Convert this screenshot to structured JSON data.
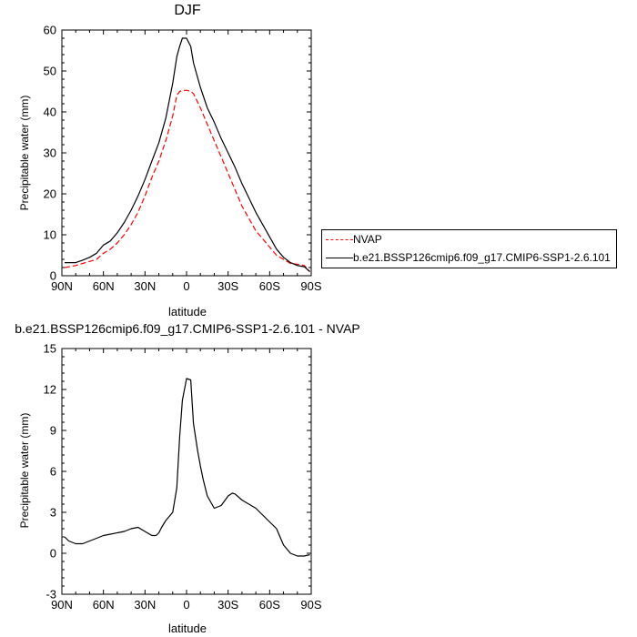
{
  "chart_data": [
    {
      "type": "line",
      "title": "DJF",
      "xlabel": "latitude",
      "ylabel": "Precipitable water (mm)",
      "x_ticks": [
        "90N",
        "60N",
        "30N",
        "0",
        "30S",
        "60S",
        "90S"
      ],
      "y_ticks": [
        "0",
        "10",
        "20",
        "30",
        "40",
        "50",
        "60"
      ],
      "xlim": [
        90,
        -90
      ],
      "ylim": [
        0,
        60
      ],
      "legend_position": "right",
      "series": [
        {
          "name": "NVAP",
          "color": "#ff0000",
          "style": "dashed",
          "x": [
            88,
            80,
            75,
            70,
            65,
            60,
            55,
            50,
            45,
            40,
            35,
            30,
            25,
            20,
            15,
            10,
            7,
            5,
            3,
            0,
            -3,
            -5,
            -10,
            -15,
            -20,
            -25,
            -30,
            -35,
            -40,
            -45,
            -50,
            -55,
            -60,
            -65,
            -70,
            -75,
            -80,
            -85,
            -89
          ],
          "y": [
            2,
            2.5,
            3,
            3.5,
            4,
            5.5,
            6.5,
            8,
            10,
            12.5,
            15.5,
            19.5,
            24,
            28,
            33,
            39,
            44,
            45,
            45.2,
            45.3,
            45,
            44.5,
            41,
            37,
            33,
            29,
            25,
            21,
            17,
            14,
            11,
            9,
            7,
            5,
            4,
            3,
            2.8,
            2.5,
            1
          ]
        },
        {
          "name": "b.e21.BSSP126cmip6.f09_g17.CMIP6-SSP1-2.6.101",
          "color": "#000000",
          "style": "solid",
          "x": [
            88,
            80,
            75,
            70,
            65,
            60,
            55,
            50,
            45,
            40,
            35,
            30,
            25,
            20,
            15,
            10,
            7,
            5,
            3,
            0,
            -3,
            -5,
            -10,
            -15,
            -20,
            -25,
            -30,
            -35,
            -40,
            -45,
            -50,
            -55,
            -60,
            -65,
            -70,
            -75,
            -80,
            -85,
            -89
          ],
          "y": [
            3.2,
            3.2,
            3.8,
            4.5,
            5.5,
            7.5,
            8.5,
            10.5,
            13,
            16,
            19.5,
            23.5,
            28,
            32.5,
            38.5,
            47,
            53.5,
            56,
            58,
            58,
            56,
            52,
            46,
            41,
            37.5,
            33.5,
            30,
            26.5,
            22.5,
            19,
            15.5,
            12.5,
            9.5,
            6.5,
            4.5,
            3.2,
            2.5,
            2.2,
            1
          ]
        }
      ]
    },
    {
      "type": "line",
      "title": "b.e21.BSSP126cmip6.f09_g17.CMIP6-SSP1-2.6.101 - NVAP",
      "xlabel": "latitude",
      "ylabel": "Precipitable water (mm)",
      "x_ticks": [
        "90N",
        "60N",
        "30N",
        "0",
        "30S",
        "60S",
        "90S"
      ],
      "y_ticks": [
        "-3",
        "0",
        "3",
        "6",
        "9",
        "12",
        "15"
      ],
      "xlim": [
        90,
        -90
      ],
      "ylim": [
        -3,
        15
      ],
      "series": [
        {
          "color": "#000000",
          "style": "solid",
          "x": [
            88,
            85,
            80,
            75,
            70,
            65,
            60,
            55,
            50,
            45,
            40,
            35,
            30,
            25,
            22,
            20,
            18,
            15,
            10,
            7,
            5,
            3,
            0,
            -3,
            -5,
            -8,
            -10,
            -12,
            -15,
            -20,
            -25,
            -30,
            -33,
            -35,
            -40,
            -45,
            -50,
            -55,
            -60,
            -65,
            -70,
            -75,
            -80,
            -85,
            -89
          ],
          "y": [
            1.2,
            0.9,
            0.7,
            0.7,
            0.9,
            1.1,
            1.3,
            1.4,
            1.5,
            1.6,
            1.8,
            1.9,
            1.6,
            1.3,
            1.3,
            1.5,
            1.9,
            2.4,
            3.0,
            4.8,
            8.5,
            11.2,
            12.8,
            12.7,
            9.5,
            7.5,
            6.4,
            5.4,
            4.2,
            3.3,
            3.5,
            4.2,
            4.4,
            4.35,
            3.9,
            3.6,
            3.3,
            2.8,
            2.3,
            1.8,
            0.6,
            0.0,
            -0.2,
            -0.2,
            -0.1
          ]
        }
      ]
    }
  ]
}
